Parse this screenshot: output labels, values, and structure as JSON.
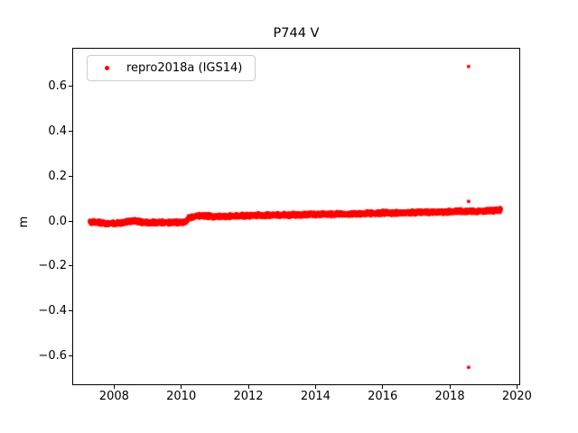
{
  "figure": {
    "title": "P744 V",
    "background_color": "#ffffff"
  },
  "legend": {
    "entries": [
      {
        "label": "repro2018a (IGS14)",
        "marker": "dot",
        "color": "#ff0000"
      }
    ],
    "position": "upper left"
  },
  "chart_data": {
    "type": "scatter",
    "title": "P744 V",
    "xlabel": "",
    "ylabel": "m",
    "grid": false,
    "legend_position": "upper left",
    "xlim": [
      2006.78,
      2020.07
    ],
    "ylim": [
      -0.728,
      0.769
    ],
    "xticks": {
      "values": [
        2008,
        2010,
        2012,
        2014,
        2016,
        2018,
        2020
      ],
      "labels": [
        "2008",
        "2010",
        "2012",
        "2014",
        "2016",
        "2018",
        "2020"
      ]
    },
    "yticks": {
      "values": [
        -0.6,
        -0.4,
        -0.2,
        0.0,
        0.2,
        0.4,
        0.6
      ],
      "labels": [
        "−0.6",
        "−0.4",
        "−0.2",
        "0.0",
        "0.2",
        "0.4",
        "0.6"
      ]
    },
    "series": [
      {
        "name": "repro2018a (IGS14)",
        "color": "#ff0000",
        "marker": "dot",
        "marker_radius_px": 2,
        "x_start": 2007.27,
        "x_end": 2019.53,
        "sample_interval_years": 0.00274,
        "noise_half_width_m": 0.012,
        "trend_keypoints": [
          [
            2007.27,
            -0.003
          ],
          [
            2007.5,
            -0.005
          ],
          [
            2007.75,
            -0.01
          ],
          [
            2008.0,
            -0.011
          ],
          [
            2008.2,
            -0.008
          ],
          [
            2008.45,
            -0.002
          ],
          [
            2008.6,
            0.001
          ],
          [
            2008.8,
            -0.004
          ],
          [
            2009.1,
            -0.007
          ],
          [
            2009.5,
            -0.006
          ],
          [
            2009.9,
            -0.006
          ],
          [
            2010.15,
            -0.004
          ],
          [
            2010.23,
            0.016
          ],
          [
            2010.45,
            0.022
          ],
          [
            2010.7,
            0.024
          ],
          [
            2011.0,
            0.02
          ],
          [
            2011.3,
            0.021
          ],
          [
            2011.7,
            0.023
          ],
          [
            2012.0,
            0.024
          ],
          [
            2012.5,
            0.026
          ],
          [
            2013.0,
            0.027
          ],
          [
            2013.5,
            0.028
          ],
          [
            2014.0,
            0.03
          ],
          [
            2014.5,
            0.031
          ],
          [
            2015.0,
            0.032
          ],
          [
            2015.5,
            0.034
          ],
          [
            2016.0,
            0.036
          ],
          [
            2016.5,
            0.037
          ],
          [
            2017.0,
            0.039
          ],
          [
            2017.5,
            0.04
          ],
          [
            2018.0,
            0.042
          ],
          [
            2018.4,
            0.044
          ],
          [
            2018.8,
            0.044
          ],
          [
            2019.1,
            0.045
          ],
          [
            2019.35,
            0.047
          ],
          [
            2019.53,
            0.05
          ]
        ],
        "outliers": [
          [
            2018.56,
            0.69
          ],
          [
            2018.56,
            0.088
          ],
          [
            2018.56,
            -0.653
          ]
        ]
      }
    ]
  }
}
